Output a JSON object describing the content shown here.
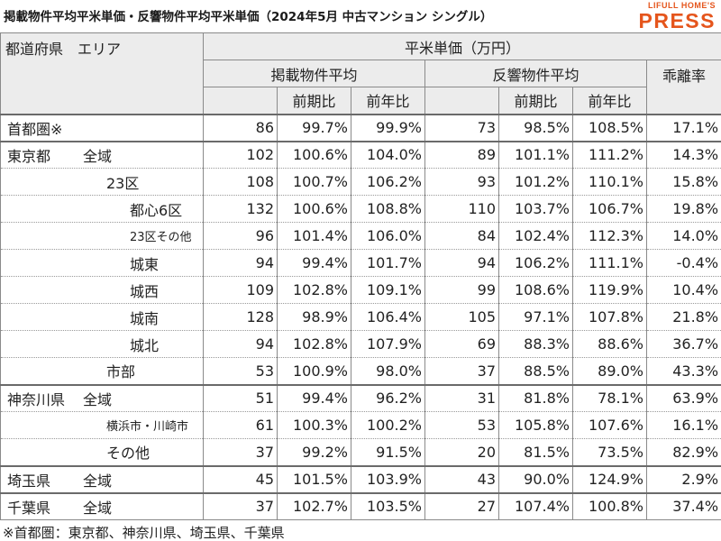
{
  "title": "掲載物件平均平米単価・反響物件平均平米単価（2024年5月 中古マンション シングル）",
  "logo": {
    "line1": "LIFULL HOME'S",
    "line2": "PRESS"
  },
  "colors": {
    "logo": "#e5551c",
    "header_bg": "#ececec",
    "border": "#8a8a8a"
  },
  "header": {
    "corner": "都道府県　エリア",
    "price_group": "平米単価（万円）",
    "listed_avg": "掲載物件平均",
    "response_avg": "反響物件平均",
    "divergence": "乖離率",
    "mom": "前期比",
    "yoy": "前年比",
    "mom2": "前期比",
    "yoy2": "前年比"
  },
  "rows": [
    {
      "pref": "首都圏※",
      "area": "",
      "listed": "86",
      "listed_mom": "99.7%",
      "listed_yoy": "99.9%",
      "resp": "73",
      "resp_mom": "98.5%",
      "resp_yoy": "108.5%",
      "div": "17.1%"
    },
    {
      "pref": "東京都",
      "area": "全域",
      "listed": "102",
      "listed_mom": "100.6%",
      "listed_yoy": "104.0%",
      "resp": "89",
      "resp_mom": "101.1%",
      "resp_yoy": "111.2%",
      "div": "14.3%"
    },
    {
      "pref": "",
      "area": "23区",
      "listed": "108",
      "listed_mom": "100.7%",
      "listed_yoy": "106.2%",
      "resp": "93",
      "resp_mom": "101.2%",
      "resp_yoy": "110.1%",
      "div": "15.8%"
    },
    {
      "pref": "",
      "area": "都心6区",
      "listed": "132",
      "listed_mom": "100.6%",
      "listed_yoy": "108.8%",
      "resp": "110",
      "resp_mom": "103.7%",
      "resp_yoy": "106.7%",
      "div": "19.8%"
    },
    {
      "pref": "",
      "area": "23区その他",
      "listed": "96",
      "listed_mom": "101.4%",
      "listed_yoy": "106.0%",
      "resp": "84",
      "resp_mom": "102.4%",
      "resp_yoy": "112.3%",
      "div": "14.0%"
    },
    {
      "pref": "",
      "area": "城東",
      "listed": "94",
      "listed_mom": "99.4%",
      "listed_yoy": "101.7%",
      "resp": "94",
      "resp_mom": "106.2%",
      "resp_yoy": "111.1%",
      "div": "-0.4%"
    },
    {
      "pref": "",
      "area": "城西",
      "listed": "109",
      "listed_mom": "102.8%",
      "listed_yoy": "109.1%",
      "resp": "99",
      "resp_mom": "108.6%",
      "resp_yoy": "119.9%",
      "div": "10.4%"
    },
    {
      "pref": "",
      "area": "城南",
      "listed": "128",
      "listed_mom": "98.9%",
      "listed_yoy": "106.4%",
      "resp": "105",
      "resp_mom": "97.1%",
      "resp_yoy": "107.8%",
      "div": "21.8%"
    },
    {
      "pref": "",
      "area": "城北",
      "listed": "94",
      "listed_mom": "102.8%",
      "listed_yoy": "107.9%",
      "resp": "69",
      "resp_mom": "88.3%",
      "resp_yoy": "88.6%",
      "div": "36.7%"
    },
    {
      "pref": "",
      "area": "市部",
      "listed": "53",
      "listed_mom": "100.9%",
      "listed_yoy": "98.0%",
      "resp": "37",
      "resp_mom": "88.5%",
      "resp_yoy": "89.0%",
      "div": "43.3%"
    },
    {
      "pref": "神奈川県",
      "area": "全域",
      "listed": "51",
      "listed_mom": "99.4%",
      "listed_yoy": "96.2%",
      "resp": "31",
      "resp_mom": "81.8%",
      "resp_yoy": "78.1%",
      "div": "63.9%"
    },
    {
      "pref": "",
      "area": "横浜市・川崎市",
      "listed": "61",
      "listed_mom": "100.3%",
      "listed_yoy": "100.2%",
      "resp": "53",
      "resp_mom": "105.8%",
      "resp_yoy": "107.6%",
      "div": "16.1%"
    },
    {
      "pref": "",
      "area": "その他",
      "listed": "37",
      "listed_mom": "99.2%",
      "listed_yoy": "91.5%",
      "resp": "20",
      "resp_mom": "81.5%",
      "resp_yoy": "73.5%",
      "div": "82.9%"
    },
    {
      "pref": "埼玉県",
      "area": "全域",
      "listed": "45",
      "listed_mom": "101.5%",
      "listed_yoy": "103.9%",
      "resp": "43",
      "resp_mom": "90.0%",
      "resp_yoy": "124.9%",
      "div": "2.9%"
    },
    {
      "pref": "千葉県",
      "area": "全域",
      "listed": "37",
      "listed_mom": "102.7%",
      "listed_yoy": "103.5%",
      "resp": "27",
      "resp_mom": "107.4%",
      "resp_yoy": "100.8%",
      "div": "37.4%"
    }
  ],
  "footnote": "※首都圏：東京都、神奈川県、埼玉県、千葉県"
}
